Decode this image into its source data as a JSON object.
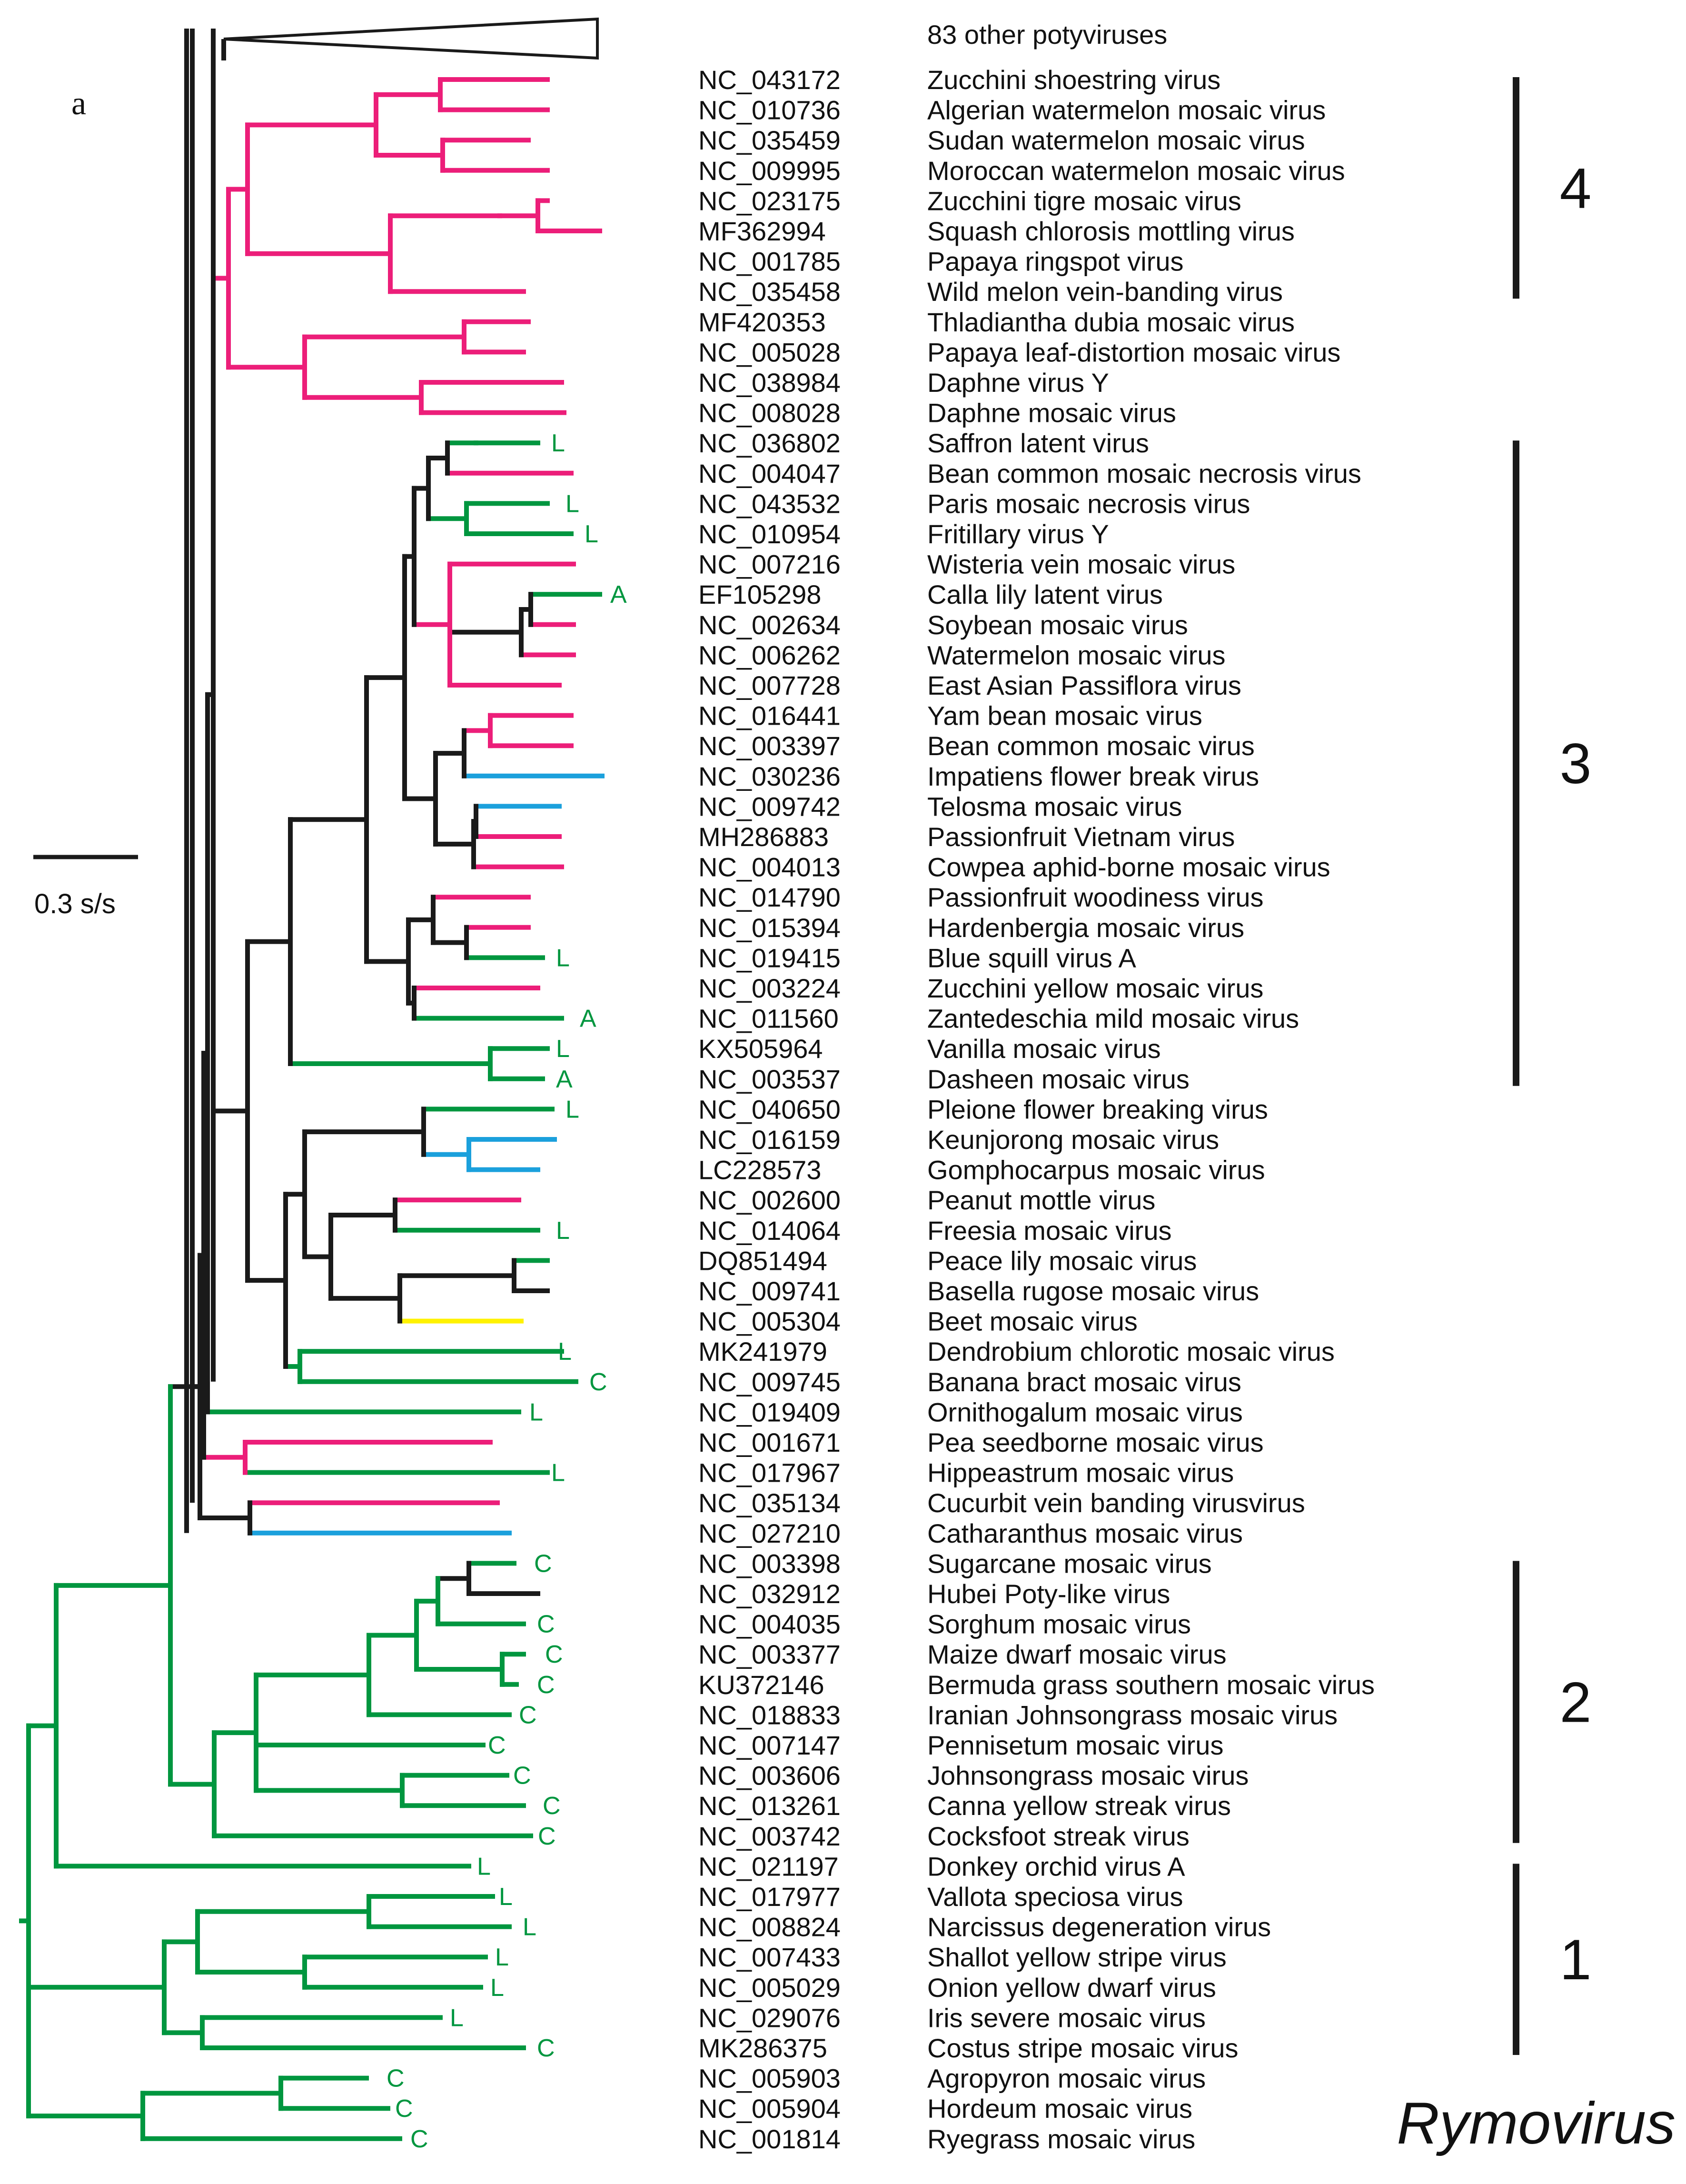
{
  "figure": {
    "panel_label": "a",
    "scale_label": "0.3 s/s",
    "collapsed_label": "83 other potyviruses",
    "genus_label": "Rymovirus",
    "colors": {
      "black": "#1a1a1a",
      "magenta": "#ec1e79",
      "green": "#00963f",
      "blue": "#1ba0dc",
      "yellow": "#fff200"
    }
  },
  "taxa": [
    {
      "acc": "NC_043172",
      "name": "Zucchini shoestring virus",
      "host": ""
    },
    {
      "acc": "NC_010736",
      "name": "Algerian watermelon mosaic virus",
      "host": ""
    },
    {
      "acc": "NC_035459",
      "name": "Sudan watermelon mosaic virus",
      "host": ""
    },
    {
      "acc": "NC_009995",
      "name": "Moroccan watermelon mosaic virus",
      "host": ""
    },
    {
      "acc": "NC_023175",
      "name": "Zucchini tigre mosaic virus",
      "host": ""
    },
    {
      "acc": "MF362994",
      "name": "Squash chlorosis mottling virus",
      "host": ""
    },
    {
      "acc": "NC_001785",
      "name": "Papaya ringspot virus",
      "host": ""
    },
    {
      "acc": "NC_035458",
      "name": "Wild melon vein-banding virus",
      "host": ""
    },
    {
      "acc": "MF420353",
      "name": "Thladiantha dubia mosaic virus",
      "host": ""
    },
    {
      "acc": "NC_005028",
      "name": "Papaya leaf-distortion mosaic virus",
      "host": ""
    },
    {
      "acc": "NC_038984",
      "name": "Daphne virus Y",
      "host": ""
    },
    {
      "acc": "NC_008028",
      "name": "Daphne mosaic virus",
      "host": ""
    },
    {
      "acc": "NC_036802",
      "name": "Saffron latent virus",
      "host": "L"
    },
    {
      "acc": "NC_004047",
      "name": "Bean common mosaic necrosis virus",
      "host": ""
    },
    {
      "acc": "NC_043532",
      "name": "Paris mosaic necrosis virus",
      "host": "L"
    },
    {
      "acc": "NC_010954",
      "name": "Fritillary virus Y",
      "host": "L"
    },
    {
      "acc": "NC_007216",
      "name": "Wisteria vein mosaic virus",
      "host": ""
    },
    {
      "acc": "EF105298",
      "name": "Calla lily latent virus",
      "host": "A"
    },
    {
      "acc": "NC_002634",
      "name": "Soybean mosaic virus",
      "host": ""
    },
    {
      "acc": "NC_006262",
      "name": "Watermelon mosaic virus",
      "host": ""
    },
    {
      "acc": "NC_007728",
      "name": "East Asian Passiflora virus",
      "host": ""
    },
    {
      "acc": "NC_016441",
      "name": "Yam bean mosaic virus",
      "host": ""
    },
    {
      "acc": "NC_003397",
      "name": "Bean common mosaic virus",
      "host": ""
    },
    {
      "acc": "NC_030236",
      "name": "Impatiens flower break virus",
      "host": ""
    },
    {
      "acc": "NC_009742",
      "name": "Telosma mosaic virus",
      "host": ""
    },
    {
      "acc": "MH286883",
      "name": "Passionfruit Vietnam virus",
      "host": ""
    },
    {
      "acc": "NC_004013",
      "name": "Cowpea aphid-borne mosaic virus",
      "host": ""
    },
    {
      "acc": "NC_014790",
      "name": "Passionfruit woodiness virus",
      "host": ""
    },
    {
      "acc": "NC_015394",
      "name": "Hardenbergia mosaic virus",
      "host": ""
    },
    {
      "acc": "NC_019415",
      "name": "Blue squill virus A",
      "host": "L"
    },
    {
      "acc": "NC_003224",
      "name": "Zucchini yellow mosaic virus",
      "host": ""
    },
    {
      "acc": "NC_011560",
      "name": "Zantedeschia mild mosaic virus",
      "host": "A"
    },
    {
      "acc": "KX505964",
      "name": "Vanilla mosaic virus",
      "host": "L"
    },
    {
      "acc": "NC_003537",
      "name": "Dasheen mosaic virus",
      "host": "A"
    },
    {
      "acc": "NC_040650",
      "name": "Pleione flower breaking virus",
      "host": "L"
    },
    {
      "acc": "NC_016159",
      "name": "Keunjorong mosaic virus",
      "host": ""
    },
    {
      "acc": "LC228573",
      "name": "Gomphocarpus mosaic virus",
      "host": ""
    },
    {
      "acc": "NC_002600",
      "name": "Peanut mottle virus",
      "host": ""
    },
    {
      "acc": "NC_014064",
      "name": "Freesia mosaic virus",
      "host": "L"
    },
    {
      "acc": "DQ851494",
      "name": "Peace lily mosaic virus",
      "host": ""
    },
    {
      "acc": "NC_009741",
      "name": "Basella rugose mosaic virus",
      "host": ""
    },
    {
      "acc": "NC_005304",
      "name": "Beet mosaic virus",
      "host": ""
    },
    {
      "acc": "MK241979",
      "name": "Dendrobium chlorotic mosaic virus",
      "host": "L"
    },
    {
      "acc": "NC_009745",
      "name": "Banana bract mosaic virus",
      "host": "C"
    },
    {
      "acc": "NC_019409",
      "name": "Ornithogalum mosaic virus",
      "host": "L"
    },
    {
      "acc": "NC_001671",
      "name": "Pea seedborne mosaic virus",
      "host": ""
    },
    {
      "acc": "NC_017967",
      "name": "Hippeastrum mosaic virus",
      "host": "L"
    },
    {
      "acc": "NC_035134",
      "name": "Cucurbit vein banding virusvirus",
      "host": ""
    },
    {
      "acc": "NC_027210",
      "name": "Catharanthus mosaic virus",
      "host": ""
    },
    {
      "acc": "NC_003398",
      "name": "Sugarcane mosaic virus",
      "host": "C"
    },
    {
      "acc": "NC_032912",
      "name": "Hubei Poty-like virus",
      "host": ""
    },
    {
      "acc": "NC_004035",
      "name": "Sorghum mosaic virus",
      "host": "C"
    },
    {
      "acc": "NC_003377",
      "name": "Maize dwarf mosaic virus",
      "host": "C"
    },
    {
      "acc": "KU372146",
      "name": "Bermuda grass southern mosaic virus",
      "host": "C"
    },
    {
      "acc": "NC_018833",
      "name": "Iranian Johnsongrass mosaic virus",
      "host": "C"
    },
    {
      "acc": "NC_007147",
      "name": "Pennisetum mosaic virus",
      "host": "C"
    },
    {
      "acc": "NC_003606",
      "name": "Johnsongrass mosaic virus",
      "host": "C"
    },
    {
      "acc": "NC_013261",
      "name": "Canna yellow streak virus",
      "host": "C"
    },
    {
      "acc": "NC_003742",
      "name": "Cocksfoot streak virus",
      "host": "C"
    },
    {
      "acc": "NC_021197",
      "name": "Donkey orchid virus A",
      "host": "L"
    },
    {
      "acc": "NC_017977",
      "name": "Vallota speciosa virus",
      "host": "L"
    },
    {
      "acc": "NC_008824",
      "name": "Narcissus degeneration virus",
      "host": "L"
    },
    {
      "acc": "NC_007433",
      "name": "Shallot yellow stripe virus",
      "host": "L"
    },
    {
      "acc": "NC_005029",
      "name": "Onion yellow dwarf virus",
      "host": "L"
    },
    {
      "acc": "NC_029076",
      "name": "Iris severe mosaic virus",
      "host": "L"
    },
    {
      "acc": "MK286375",
      "name": "Costus stripe mosaic virus",
      "host": "C"
    },
    {
      "acc": "NC_005903",
      "name": "Agropyron mosaic virus",
      "host": "C"
    },
    {
      "acc": "NC_005904",
      "name": "Hordeum mosaic virus",
      "host": "C"
    },
    {
      "acc": "NC_001814",
      "name": "Ryegrass mosaic virus",
      "host": "C"
    }
  ],
  "clades": [
    {
      "label": "4"
    },
    {
      "label": "3"
    },
    {
      "label": "2"
    },
    {
      "label": "1"
    }
  ]
}
